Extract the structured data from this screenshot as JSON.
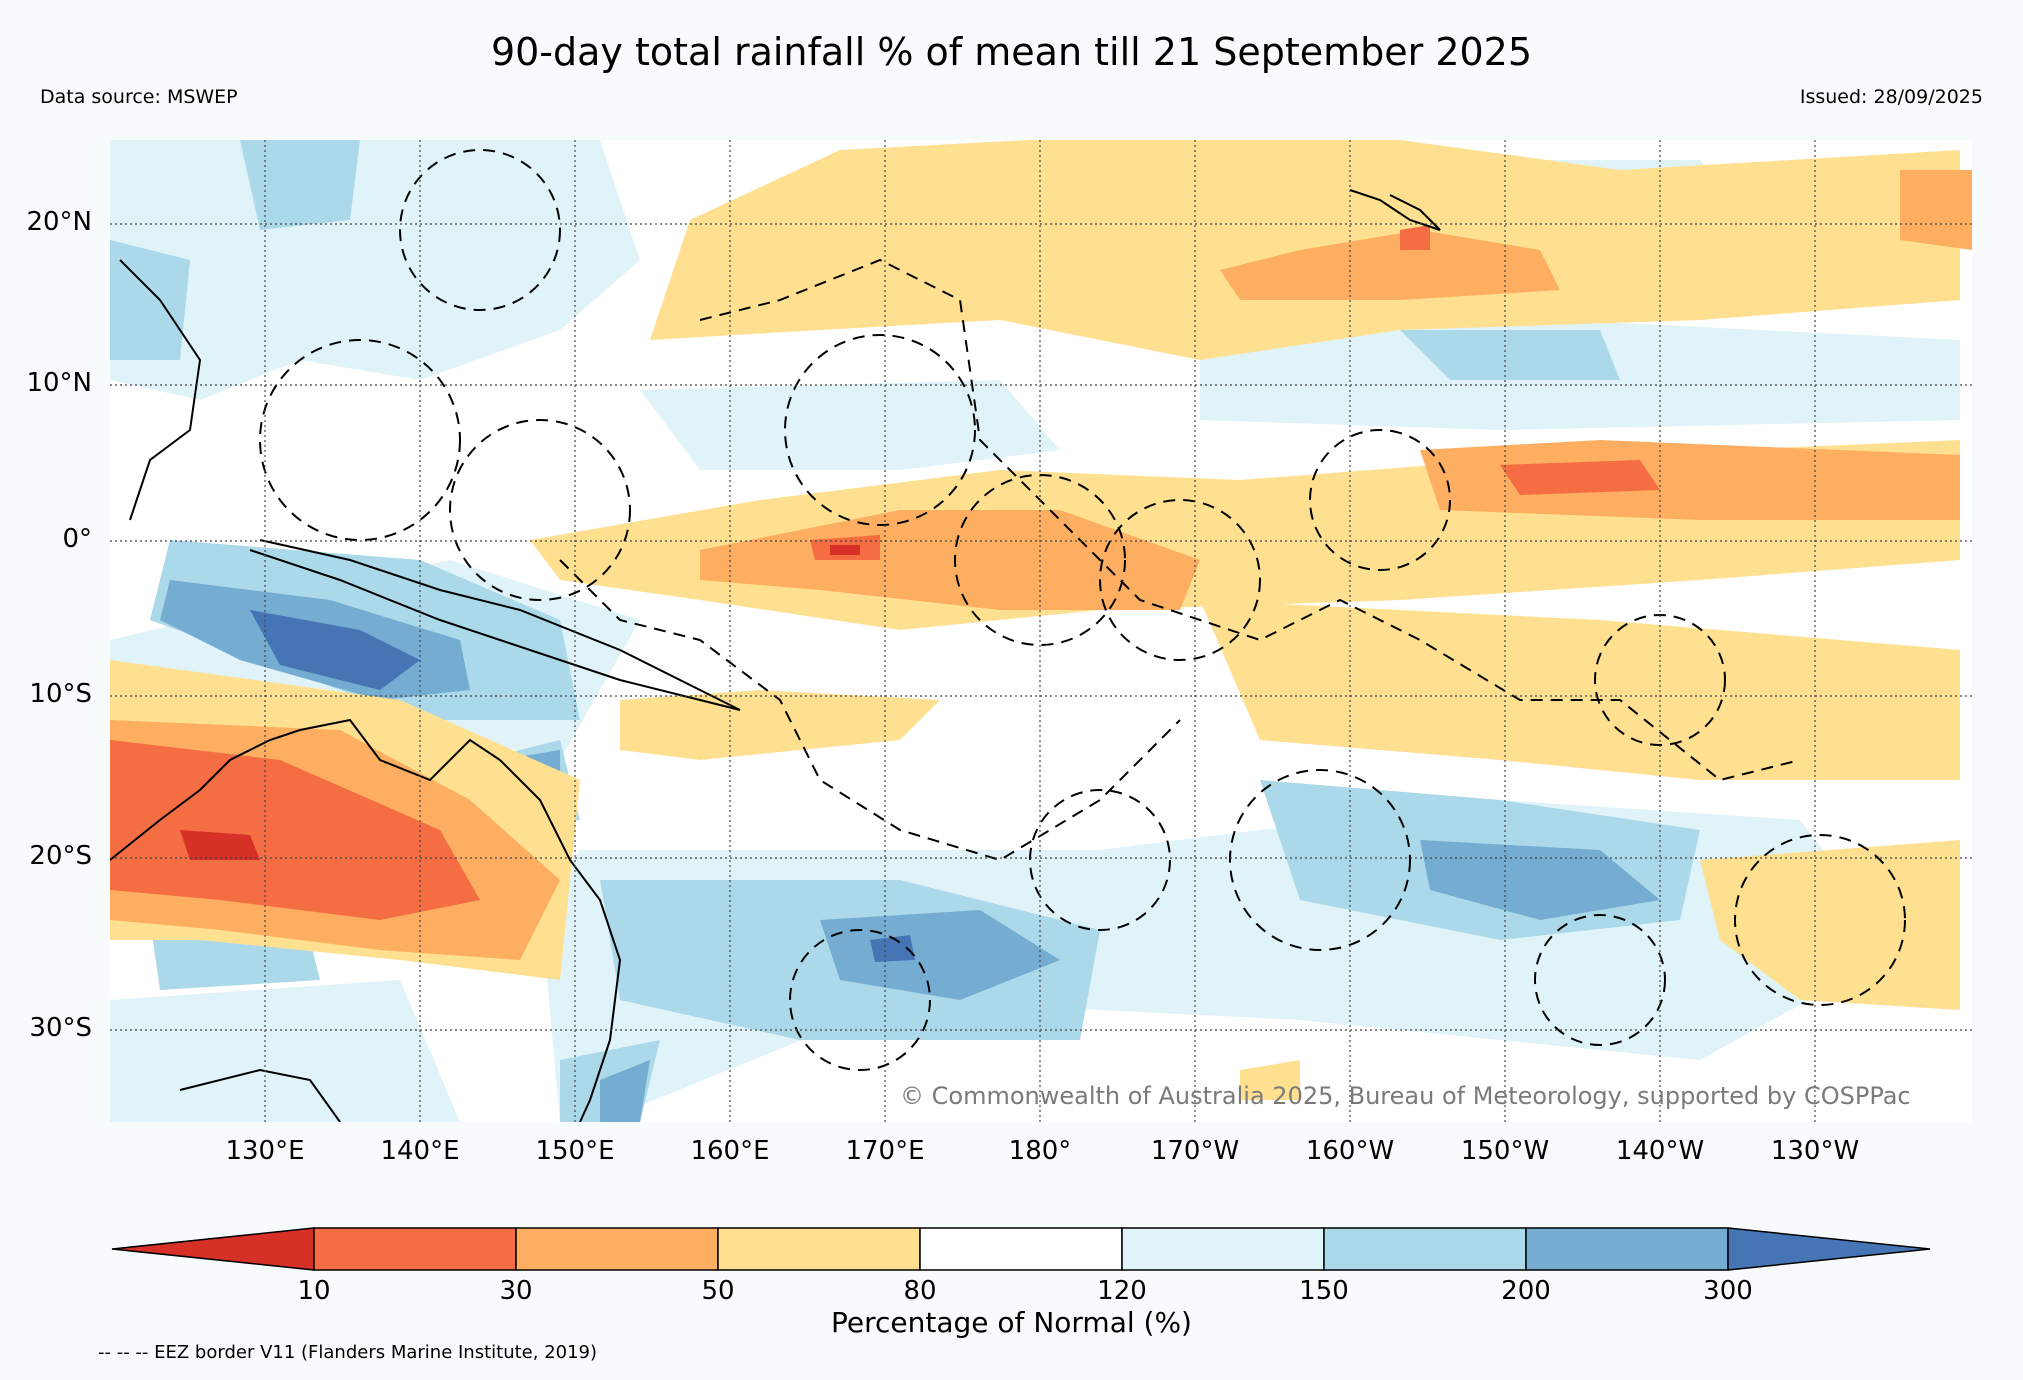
{
  "title": "90-day total rainfall % of mean till 21 September 2025",
  "data_source": "Data source: MSWEP",
  "issued": "Issued: 28/09/2025",
  "lat_labels": [
    "20°N",
    "10°N",
    "0°",
    "10°S",
    "20°S",
    "30°S"
  ],
  "lon_labels": [
    "130°E",
    "140°E",
    "150°E",
    "160°E",
    "170°E",
    "180°",
    "170°W",
    "160°W",
    "150°W",
    "140°W",
    "130°W"
  ],
  "copyright": "© Commonwealth of Australia 2025, Bureau of Meteorology, supported by COSPPac",
  "colorbar": {
    "ticks": [
      "10",
      "30",
      "50",
      "80",
      "120",
      "150",
      "200",
      "300"
    ],
    "colors": [
      "#d73027",
      "#f46d43",
      "#fdae61",
      "#fee090",
      "#ffffff",
      "#e0f3f8",
      "#abd9e9",
      "#74add1",
      "#4575b4"
    ],
    "label": "Percentage of Normal (%)"
  },
  "footnote": "-- -- -- EEZ border V11 (Flanders Marine Institute, 2019)"
}
